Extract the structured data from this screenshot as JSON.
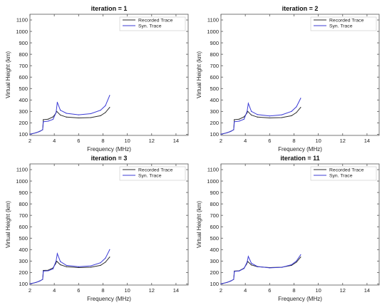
{
  "colors": {
    "recorded": "#2b2b2b",
    "synthetic": "#3b3bd6",
    "axis": "#555555",
    "legend_border": "#cfcfcf",
    "background": "#ffffff"
  },
  "legend_entries": [
    "Recorded Trace",
    "Syn. Trace"
  ],
  "chart_data": [
    {
      "type": "line",
      "title": "iteration = 1",
      "xlabel": "Frequency (MHz)",
      "ylabel": "Virtual Height (km)",
      "xlim": [
        2,
        15
      ],
      "ylim": [
        90,
        1150
      ],
      "xticks": [
        2,
        4,
        6,
        8,
        10,
        12,
        14
      ],
      "yticks": [
        100,
        200,
        300,
        400,
        500,
        600,
        700,
        800,
        900,
        1000,
        1100
      ],
      "grid": false,
      "legend": "top-right",
      "series": [
        {
          "name": "Recorded Trace",
          "x": [
            2.0,
            2.5,
            2.8,
            3.05,
            3.1,
            3.5,
            3.9,
            4.1,
            4.2,
            4.5,
            5.0,
            6.0,
            7.0,
            7.8,
            8.2,
            8.55
          ],
          "y": [
            100,
            113,
            125,
            140,
            228,
            232,
            252,
            280,
            300,
            268,
            250,
            243,
            246,
            262,
            290,
            335
          ]
        },
        {
          "name": "Syn. Trace",
          "x": [
            2.0,
            2.5,
            2.8,
            3.05,
            3.1,
            3.5,
            3.9,
            4.15,
            4.25,
            4.5,
            5.0,
            6.0,
            7.0,
            7.8,
            8.2,
            8.55
          ],
          "y": [
            100,
            113,
            125,
            140,
            210,
            215,
            230,
            290,
            380,
            310,
            283,
            270,
            280,
            310,
            350,
            440
          ]
        }
      ]
    },
    {
      "type": "line",
      "title": "iteration = 2",
      "xlabel": "Frequency (MHz)",
      "ylabel": "Virtual Height (km)",
      "xlim": [
        2,
        15
      ],
      "ylim": [
        90,
        1150
      ],
      "xticks": [
        2,
        4,
        6,
        8,
        10,
        12,
        14
      ],
      "yticks": [
        100,
        200,
        300,
        400,
        500,
        600,
        700,
        800,
        900,
        1000,
        1100
      ],
      "grid": false,
      "legend": "top-right",
      "series": [
        {
          "name": "Recorded Trace",
          "x": [
            2.0,
            2.5,
            2.8,
            3.05,
            3.1,
            3.5,
            3.9,
            4.1,
            4.2,
            4.5,
            5.0,
            6.0,
            7.0,
            7.8,
            8.2,
            8.55
          ],
          "y": [
            100,
            113,
            125,
            140,
            228,
            232,
            252,
            280,
            300,
            268,
            250,
            243,
            246,
            262,
            290,
            335
          ]
        },
        {
          "name": "Syn. Trace",
          "x": [
            2.0,
            2.5,
            2.8,
            3.05,
            3.1,
            3.5,
            3.9,
            4.15,
            4.25,
            4.5,
            5.0,
            6.0,
            7.0,
            7.8,
            8.2,
            8.55
          ],
          "y": [
            100,
            113,
            125,
            140,
            210,
            215,
            232,
            300,
            370,
            300,
            272,
            260,
            270,
            300,
            340,
            415
          ]
        }
      ]
    },
    {
      "type": "line",
      "title": "iteration = 3",
      "xlabel": "Frequency (MHz)",
      "ylabel": "Virtual Height (km)",
      "xlim": [
        2,
        15
      ],
      "ylim": [
        90,
        1150
      ],
      "xticks": [
        2,
        4,
        6,
        8,
        10,
        12,
        14
      ],
      "yticks": [
        100,
        200,
        300,
        400,
        500,
        600,
        700,
        800,
        900,
        1000,
        1100
      ],
      "grid": false,
      "legend": "top-right",
      "series": [
        {
          "name": "Recorded Trace",
          "x": [
            2.0,
            2.5,
            2.8,
            3.05,
            3.1,
            3.5,
            3.9,
            4.1,
            4.2,
            4.5,
            5.0,
            6.0,
            7.0,
            7.8,
            8.2,
            8.55
          ],
          "y": [
            100,
            113,
            125,
            140,
            218,
            220,
            240,
            275,
            298,
            268,
            250,
            243,
            246,
            262,
            290,
            335
          ]
        },
        {
          "name": "Syn. Trace",
          "x": [
            2.0,
            2.5,
            2.8,
            3.05,
            3.1,
            3.5,
            3.9,
            4.15,
            4.25,
            4.5,
            5.0,
            6.0,
            7.0,
            7.8,
            8.2,
            8.55
          ],
          "y": [
            100,
            113,
            125,
            140,
            212,
            215,
            232,
            300,
            365,
            295,
            262,
            250,
            258,
            285,
            325,
            400
          ]
        }
      ]
    },
    {
      "type": "line",
      "title": "iteration = 11",
      "xlabel": "Frequency (MHz)",
      "ylabel": "Virtual Height (km)",
      "xlim": [
        2,
        15
      ],
      "ylim": [
        90,
        1150
      ],
      "xticks": [
        2,
        4,
        6,
        8,
        10,
        12,
        14
      ],
      "yticks": [
        100,
        200,
        300,
        400,
        500,
        600,
        700,
        800,
        900,
        1000,
        1100
      ],
      "grid": false,
      "legend": "top-right",
      "series": [
        {
          "name": "Recorded Trace",
          "x": [
            2.0,
            2.5,
            2.8,
            3.05,
            3.1,
            3.5,
            3.9,
            4.1,
            4.2,
            4.5,
            5.0,
            6.0,
            7.0,
            7.8,
            8.2,
            8.55
          ],
          "y": [
            100,
            113,
            125,
            140,
            212,
            215,
            238,
            272,
            296,
            266,
            250,
            243,
            246,
            262,
            290,
            335
          ]
        },
        {
          "name": "Syn. Trace",
          "x": [
            2.0,
            2.5,
            2.8,
            3.05,
            3.1,
            3.5,
            3.9,
            4.15,
            4.25,
            4.5,
            5.0,
            6.0,
            7.0,
            7.8,
            8.2,
            8.55
          ],
          "y": [
            100,
            113,
            125,
            140,
            210,
            213,
            235,
            290,
            340,
            280,
            252,
            240,
            245,
            268,
            300,
            355
          ]
        }
      ]
    }
  ]
}
